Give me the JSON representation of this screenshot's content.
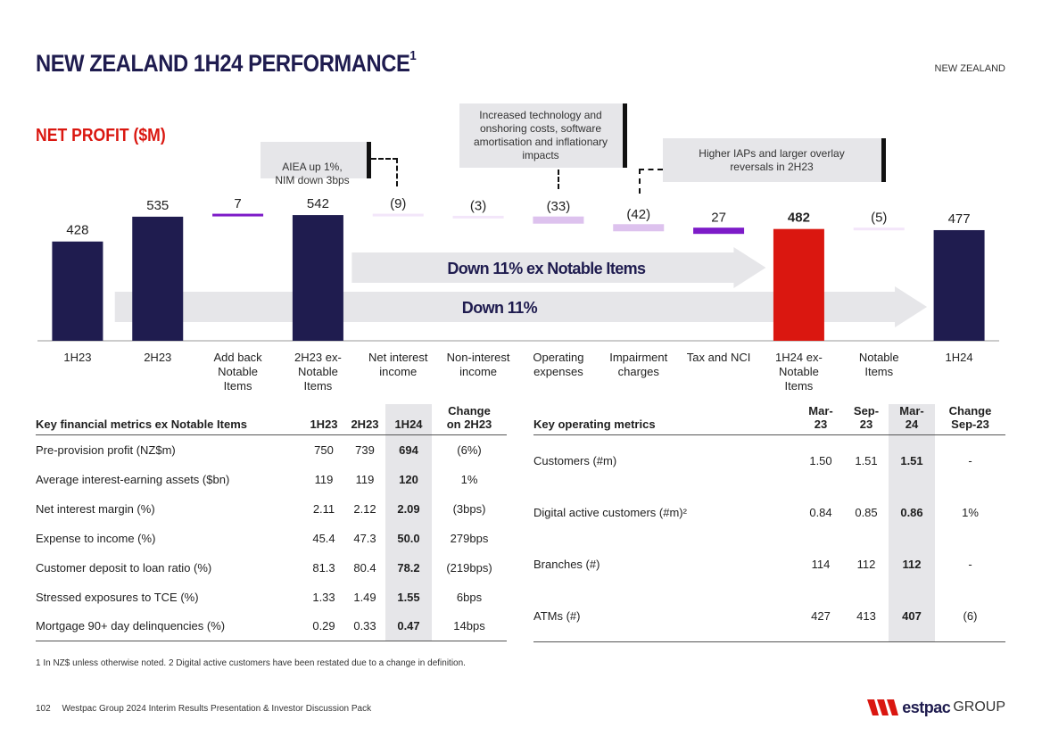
{
  "page": {
    "title": "NEW ZEALAND 1H24 PERFORMANCE",
    "title_sup": "1",
    "region": "NEW ZEALAND",
    "subtitle": "NET PROFIT ($M)"
  },
  "callouts": {
    "aiea": "AIEA up 1%,\nNIM down 3bps",
    "costs": "Increased technology and onshoring costs, software amortisation and inflationary impacts",
    "iap": "Higher IAPs and larger overlay reversals in 2H23"
  },
  "chart_data": {
    "type": "bar",
    "subtype": "waterfall",
    "title": "NET PROFIT ($M)",
    "categories": [
      "1H23",
      "2H23",
      "Add back Notable Items",
      "2H23 ex-Notable Items",
      "Net interest income",
      "Non-interest income",
      "Operating expenses",
      "Impairment charges",
      "Tax and NCI",
      "1H24 ex-Notable Items",
      "Notable Items",
      "1H24"
    ],
    "values": [
      428,
      535,
      7,
      542,
      -9,
      -3,
      -33,
      -42,
      27,
      482,
      -5,
      477
    ],
    "value_labels": [
      "428",
      "535",
      "7",
      "542",
      "(9)",
      "(3)",
      "(33)",
      "(42)",
      "27",
      "482",
      "(5)",
      "477"
    ],
    "kinds": [
      "total",
      "total",
      "up",
      "total",
      "down",
      "down",
      "down",
      "down",
      "up",
      "highlight",
      "down",
      "total"
    ],
    "arrows": [
      {
        "label": "Down 11% ex Notable Items",
        "from": "2H23 ex-Notable Items",
        "to": "1H24 ex-Notable Items"
      },
      {
        "label": "Down 11%",
        "from": "2H23",
        "to": "1H24"
      }
    ],
    "colors": {
      "total": "#1f1c4f",
      "highlight": "#da1710",
      "up": "#7d1bc8",
      "down": "#ddc2ee",
      "light": "#f3e6fa",
      "arrow": "#e6e6e9"
    }
  },
  "left_table": {
    "headers": [
      "Key financial metrics ex Notable Items",
      "1H23",
      "2H23",
      "1H24",
      "Change\non 2H23"
    ],
    "rows": [
      [
        "Pre-provision profit (NZ$m)",
        "750",
        "739",
        "694",
        "(6%)"
      ],
      [
        "Average interest-earning assets ($bn)",
        "119",
        "119",
        "120",
        "1%"
      ],
      [
        "Net interest margin (%)",
        "2.11",
        "2.12",
        "2.09",
        "(3bps)"
      ],
      [
        "Expense to income (%)",
        "45.4",
        "47.3",
        "50.0",
        "279bps"
      ],
      [
        "Customer deposit to loan ratio (%)",
        "81.3",
        "80.4",
        "78.2",
        "(219bps)"
      ],
      [
        "Stressed exposures to TCE (%)",
        "1.33",
        "1.49",
        "1.55",
        "6bps"
      ],
      [
        "Mortgage 90+ day delinquencies (%)",
        "0.29",
        "0.33",
        "0.47",
        "14bps"
      ]
    ]
  },
  "right_table": {
    "headers": [
      "Key operating metrics",
      "Mar-\n23",
      "Sep-\n23",
      "Mar-\n24",
      "Change\nSep-23"
    ],
    "rows": [
      [
        "Customers (#m)",
        "1.50",
        "1.51",
        "1.51",
        "-"
      ],
      [
        "Digital active customers (#m)²",
        "0.84",
        "0.85",
        "0.86",
        "1%"
      ],
      [
        "Branches (#)",
        "114",
        "112",
        "112",
        "-"
      ],
      [
        "ATMs (#)",
        "427",
        "413",
        "407",
        "(6)"
      ]
    ]
  },
  "footnote": "1 In NZ$ unless otherwise noted. 2 Digital active customers have been restated due to a change in definition.",
  "footer": {
    "page_number": "102",
    "text": "Westpac Group 2024 Interim Results Presentation & Investor Discussion Pack",
    "logo_brand": "estpac",
    "logo_group": "GROUP"
  }
}
